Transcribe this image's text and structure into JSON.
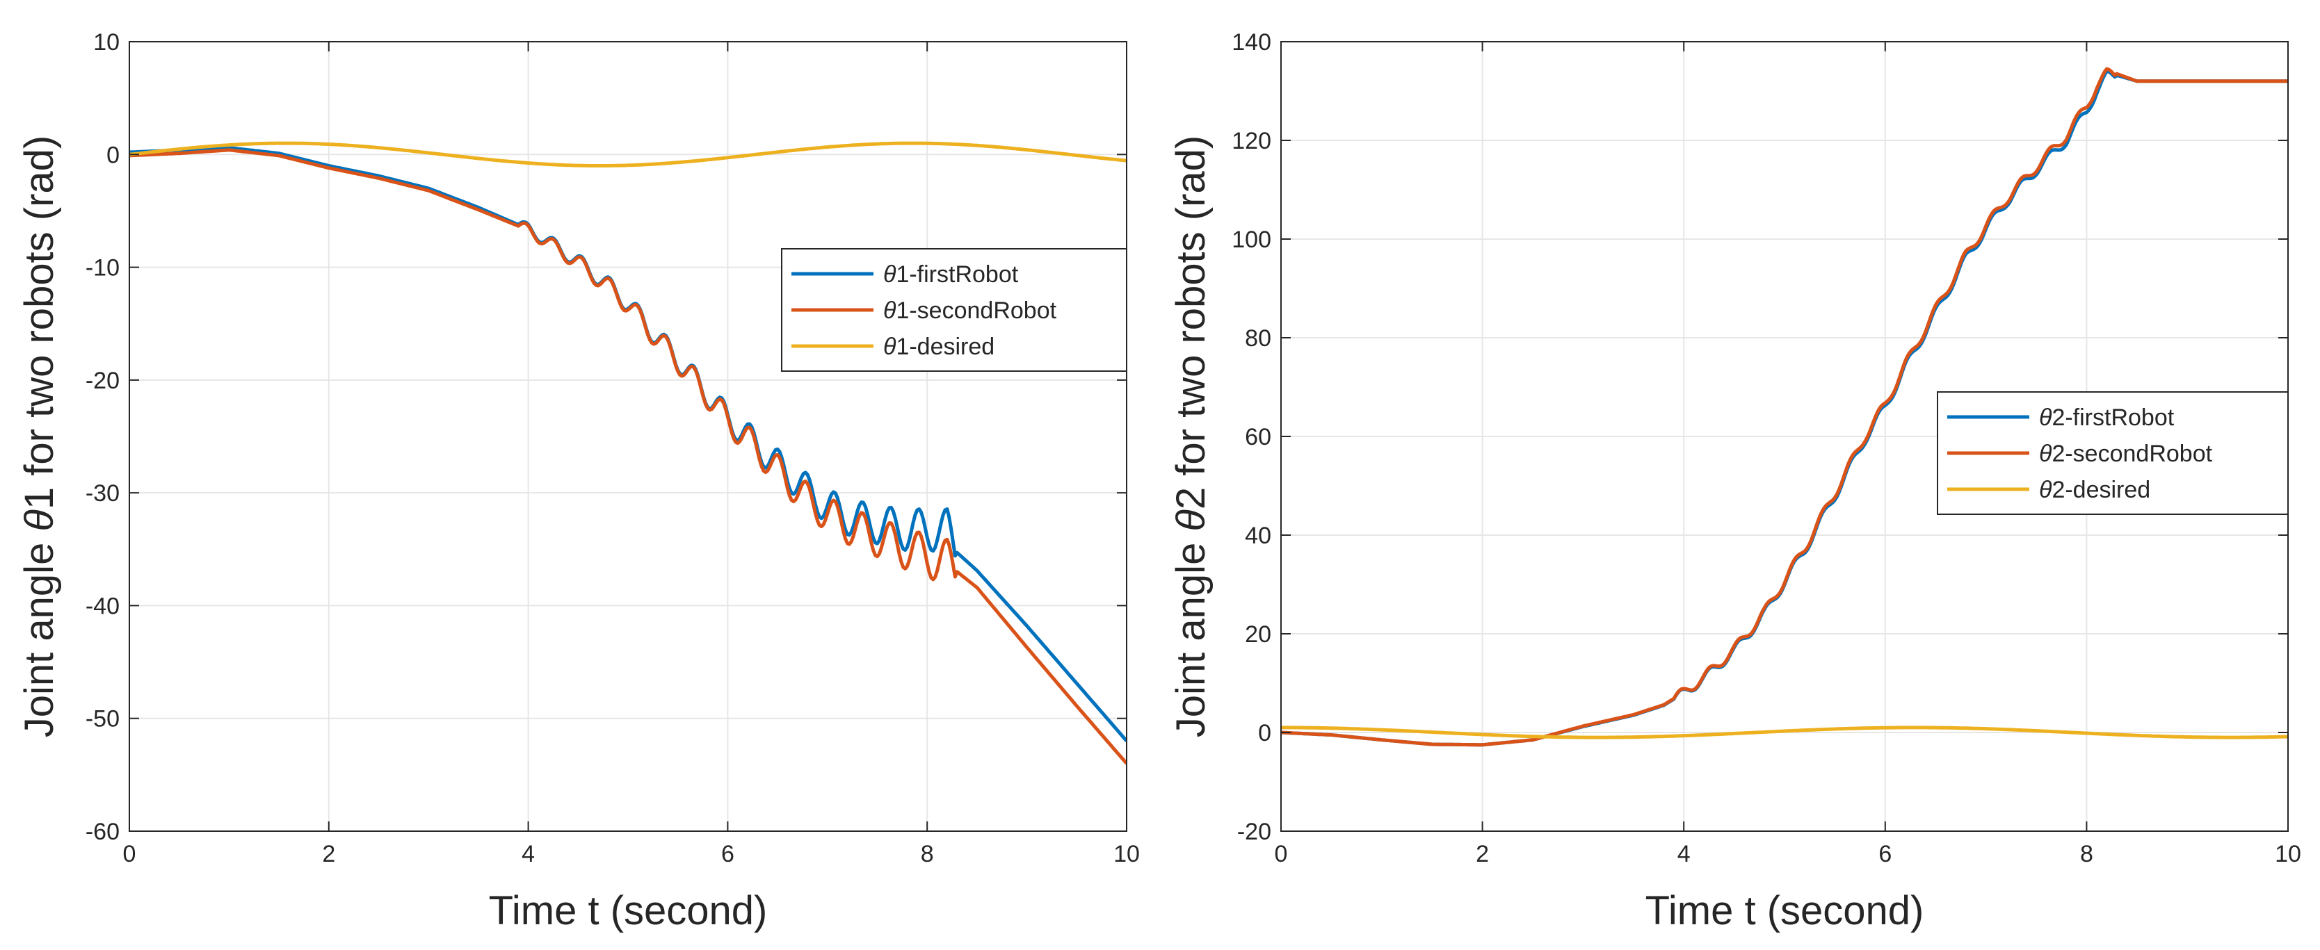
{
  "chart_data": [
    {
      "type": "line",
      "title": "",
      "xlabel": "Time t (second)",
      "ylabel_pre": "Joint angle ",
      "ylabel_theta": "θ",
      "ylabel_post": "1  for two robots (rad)",
      "xlim": [
        0,
        10
      ],
      "ylim": [
        -60,
        10
      ],
      "xticks": [
        0,
        2,
        4,
        6,
        8,
        10
      ],
      "yticks": [
        -60,
        -50,
        -40,
        -30,
        -20,
        -10,
        0,
        10
      ],
      "grid": true,
      "legend_position": "right-middle",
      "series": [
        {
          "name": "θ1-firstRobot",
          "label_theta": "θ",
          "label_rest": "1-firstRobot",
          "color": "#0072BD",
          "x": [
            0,
            0.5,
            1.0,
            1.5,
            2.0,
            2.5,
            3.0,
            3.5,
            4.0,
            4.2,
            4.5,
            4.8,
            5.0,
            5.2,
            5.5,
            5.8,
            6.0,
            6.2,
            6.4,
            6.6,
            6.8,
            7.0,
            7.2,
            7.4,
            7.6,
            7.8,
            8.0,
            8.1,
            8.2,
            8.25,
            8.3,
            8.5,
            9.0,
            9.5,
            10.0
          ],
          "y": [
            0.2,
            0.4,
            0.6,
            0.1,
            -1.0,
            -1.9,
            -3.0,
            -4.7,
            -6.6,
            -7.7,
            -9.5,
            -11.6,
            -13.2,
            -15.3,
            -18.2,
            -21.3,
            -23.4,
            -25.0,
            -26.7,
            -28.3,
            -29.8,
            -31.2,
            -32.1,
            -32.6,
            -33.0,
            -33.3,
            -33.3,
            -33.2,
            -33.4,
            -34.5,
            -35.3,
            -36.9,
            -41.8,
            -46.9,
            -52.0
          ]
        },
        {
          "name": "θ1-secondRobot",
          "label_theta": "θ",
          "label_rest": "1-secondRobot",
          "color": "#D95319",
          "x": [
            0,
            0.5,
            1.0,
            1.5,
            2.0,
            2.5,
            3.0,
            3.5,
            4.0,
            4.2,
            4.5,
            4.8,
            5.0,
            5.2,
            5.5,
            5.8,
            6.0,
            6.2,
            6.4,
            6.6,
            6.8,
            7.0,
            7.2,
            7.4,
            7.6,
            7.8,
            8.0,
            8.1,
            8.2,
            8.25,
            8.3,
            8.5,
            9.0,
            9.5,
            10.0
          ],
          "y": [
            -0.1,
            0.1,
            0.4,
            -0.1,
            -1.2,
            -2.1,
            -3.2,
            -4.9,
            -6.7,
            -7.8,
            -9.6,
            -11.7,
            -13.3,
            -15.4,
            -18.3,
            -21.4,
            -23.6,
            -25.3,
            -27.1,
            -28.9,
            -30.6,
            -31.9,
            -32.9,
            -33.6,
            -34.3,
            -35.0,
            -35.6,
            -35.9,
            -36.1,
            -36.6,
            -37.0,
            -38.4,
            -43.7,
            -48.9,
            -54.0
          ]
        },
        {
          "name": "θ1-desired",
          "label_theta": "θ",
          "label_rest": "1-desired",
          "color": "#EDB120",
          "x": [
            0,
            1.57,
            4.71,
            7.85,
            10
          ],
          "y": [
            0,
            1,
            -1,
            1,
            -0.5
          ],
          "sine": true
        }
      ]
    },
    {
      "type": "line",
      "title": "",
      "xlabel": "Time t (second)",
      "ylabel_pre": "Joint angle ",
      "ylabel_theta": "θ",
      "ylabel_post": "2  for two robots (rad)",
      "xlim": [
        0,
        10
      ],
      "ylim": [
        -20,
        140
      ],
      "xticks": [
        0,
        2,
        4,
        6,
        8,
        10
      ],
      "yticks": [
        -20,
        0,
        20,
        40,
        60,
        80,
        100,
        120,
        140
      ],
      "grid": true,
      "legend_position": "right-middle",
      "series": [
        {
          "name": "θ2-firstRobot",
          "label_theta": "θ",
          "label_rest": "2-firstRobot",
          "color": "#0072BD",
          "x": [
            0,
            0.5,
            1.0,
            1.5,
            2.0,
            2.5,
            3.0,
            3.5,
            3.8,
            4.0,
            4.2,
            4.5,
            4.8,
            5.0,
            5.2,
            5.5,
            5.8,
            6.0,
            6.2,
            6.5,
            6.8,
            7.0,
            7.2,
            7.5,
            7.8,
            8.0,
            8.1,
            8.2,
            8.3,
            8.5,
            9.0,
            10.0
          ],
          "y": [
            0,
            -0.5,
            -1.5,
            -2.4,
            -2.5,
            -1.5,
            1.2,
            3.5,
            5.5,
            8.0,
            11.0,
            16.5,
            24.0,
            30.5,
            37.0,
            48.0,
            59.5,
            66.0,
            74.0,
            85.0,
            96.0,
            102.0,
            107.5,
            114.0,
            120.0,
            126.0,
            130.0,
            133.0,
            133.2,
            132.0,
            132.0,
            132.0
          ]
        },
        {
          "name": "θ2-secondRobot",
          "label_theta": "θ",
          "label_rest": "2-secondRobot",
          "color": "#D95319",
          "x": [
            0,
            0.5,
            1.0,
            1.5,
            2.0,
            2.5,
            3.0,
            3.5,
            3.8,
            4.0,
            4.2,
            4.5,
            4.8,
            5.0,
            5.2,
            5.5,
            5.8,
            6.0,
            6.2,
            6.5,
            6.8,
            7.0,
            7.2,
            7.5,
            7.8,
            8.0,
            8.1,
            8.2,
            8.3,
            8.5,
            9.0,
            10.0
          ],
          "y": [
            0,
            -0.5,
            -1.5,
            -2.4,
            -2.5,
            -1.5,
            1.3,
            3.6,
            5.6,
            8.1,
            11.2,
            16.8,
            24.3,
            30.8,
            37.4,
            48.5,
            60.0,
            66.5,
            74.5,
            85.6,
            96.6,
            102.6,
            108.0,
            114.6,
            121.0,
            127.0,
            131.0,
            133.5,
            133.5,
            132.0,
            132.0,
            132.0
          ]
        },
        {
          "name": "θ2-desired",
          "label_theta": "θ",
          "label_rest": "2-desired",
          "color": "#EDB120",
          "x": [
            0,
            3.14,
            6.28,
            9.42,
            10
          ],
          "y": [
            1,
            -1,
            1,
            -1,
            -0.84
          ],
          "cosine": true
        }
      ]
    }
  ]
}
